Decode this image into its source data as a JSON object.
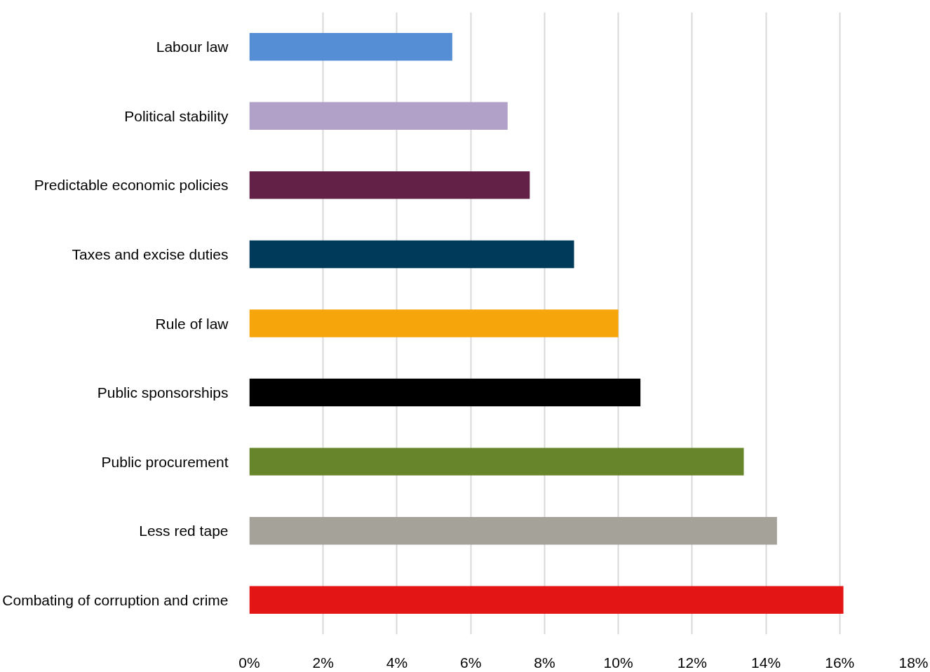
{
  "chart_data": {
    "type": "bar",
    "orientation": "horizontal",
    "categories": [
      "Labour law",
      "Political stability",
      "Predictable economic policies",
      "Taxes and excise duties",
      "Rule of law",
      "Public sponsorships",
      "Public procurement",
      "Less red tape",
      "Combating of corruption and crime"
    ],
    "values": [
      5.5,
      7.0,
      7.6,
      8.8,
      10.0,
      10.6,
      13.4,
      14.3,
      16.1
    ],
    "colors": [
      "#558ed5",
      "#b1a0c7",
      "#632147",
      "#003a5a",
      "#f6a50b",
      "#000000",
      "#67852a",
      "#a5a29a",
      "#e41515"
    ],
    "xlim": [
      0,
      18
    ],
    "xticks": [
      {
        "value": 0,
        "label": "0%"
      },
      {
        "value": 2,
        "label": "2%"
      },
      {
        "value": 4,
        "label": "4%"
      },
      {
        "value": 6,
        "label": "6%"
      },
      {
        "value": 8,
        "label": "8%"
      },
      {
        "value": 10,
        "label": "10%"
      },
      {
        "value": 12,
        "label": "12%"
      },
      {
        "value": 14,
        "label": "14%"
      },
      {
        "value": 16,
        "label": "16%"
      },
      {
        "value": 18,
        "label": "18%"
      }
    ],
    "grid": "x",
    "legend": false
  }
}
